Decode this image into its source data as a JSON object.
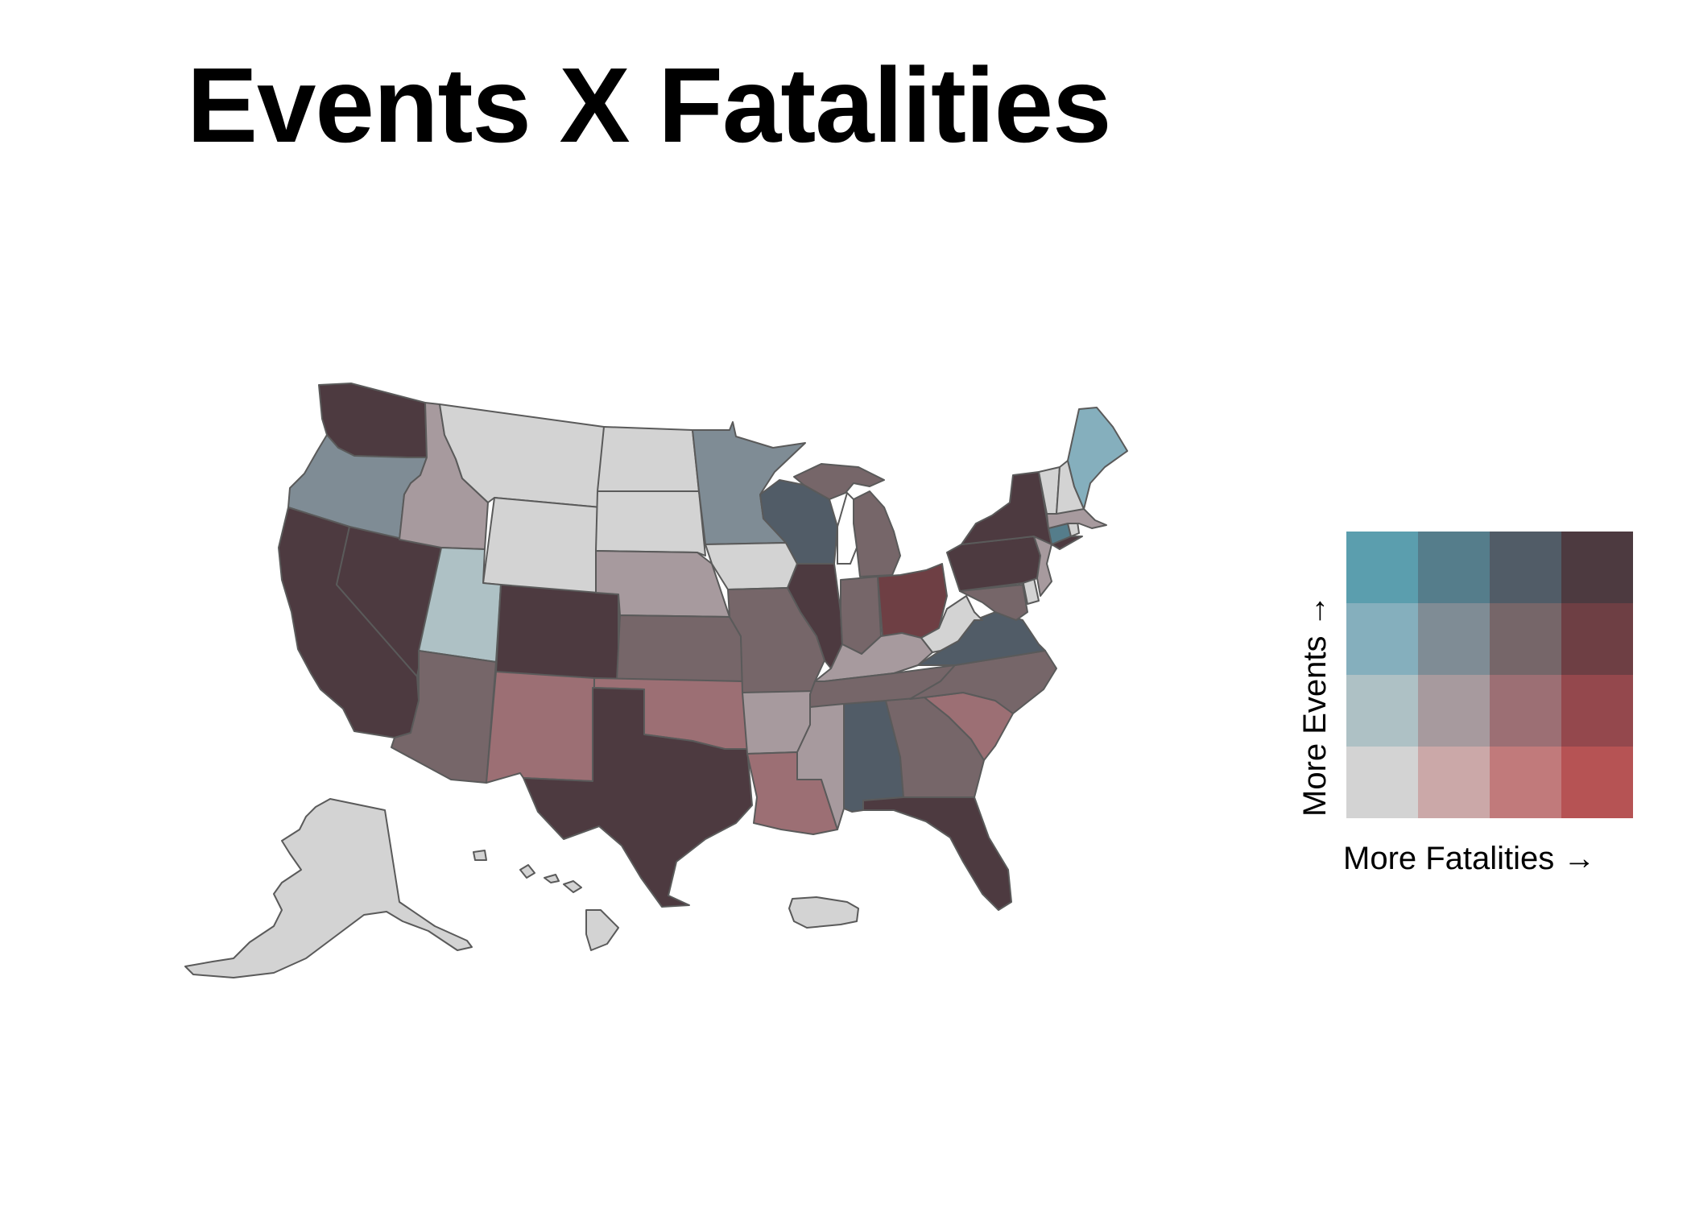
{
  "title": "Events X Fatalities",
  "legend": {
    "x_label": "More Fatalities →",
    "y_label": "More Events →",
    "levels": 4,
    "colors_by_events_row_low_to_high": [
      [
        "#d3d3d3",
        "#cba8a8",
        "#c17a7b",
        "#b65354"
      ],
      [
        "#aec1c5",
        "#a79a9e",
        "#9c6f74",
        "#94484d"
      ],
      [
        "#85afbd",
        "#7f8c95",
        "#766669",
        "#6e3f44"
      ],
      [
        "#5b9eae",
        "#557d8b",
        "#515c67",
        "#4d3a40"
      ]
    ]
  },
  "map": {
    "stroke_color": "#5a5a5a",
    "states": [
      {
        "id": "WA",
        "events_level": 4,
        "fatalities_level": 4
      },
      {
        "id": "OR",
        "events_level": 3,
        "fatalities_level": 2
      },
      {
        "id": "CA",
        "events_level": 4,
        "fatalities_level": 4
      },
      {
        "id": "NV",
        "events_level": 4,
        "fatalities_level": 4
      },
      {
        "id": "ID",
        "events_level": 2,
        "fatalities_level": 2
      },
      {
        "id": "MT",
        "events_level": 1,
        "fatalities_level": 1
      },
      {
        "id": "WY",
        "events_level": 1,
        "fatalities_level": 1
      },
      {
        "id": "UT",
        "events_level": 2,
        "fatalities_level": 1
      },
      {
        "id": "AZ",
        "events_level": 3,
        "fatalities_level": 3
      },
      {
        "id": "CO",
        "events_level": 4,
        "fatalities_level": 4
      },
      {
        "id": "NM",
        "events_level": 2,
        "fatalities_level": 3
      },
      {
        "id": "ND",
        "events_level": 1,
        "fatalities_level": 1
      },
      {
        "id": "SD",
        "events_level": 1,
        "fatalities_level": 1
      },
      {
        "id": "NE",
        "events_level": 2,
        "fatalities_level": 2
      },
      {
        "id": "KS",
        "events_level": 3,
        "fatalities_level": 3
      },
      {
        "id": "OK",
        "events_level": 2,
        "fatalities_level": 3
      },
      {
        "id": "TX",
        "events_level": 4,
        "fatalities_level": 4
      },
      {
        "id": "MN",
        "events_level": 3,
        "fatalities_level": 2
      },
      {
        "id": "IA",
        "events_level": 1,
        "fatalities_level": 1
      },
      {
        "id": "MO",
        "events_level": 3,
        "fatalities_level": 3
      },
      {
        "id": "AR",
        "events_level": 2,
        "fatalities_level": 2
      },
      {
        "id": "LA",
        "events_level": 2,
        "fatalities_level": 3
      },
      {
        "id": "WI",
        "events_level": 4,
        "fatalities_level": 3
      },
      {
        "id": "IL",
        "events_level": 4,
        "fatalities_level": 4
      },
      {
        "id": "MI",
        "events_level": 3,
        "fatalities_level": 3
      },
      {
        "id": "IN",
        "events_level": 3,
        "fatalities_level": 3
      },
      {
        "id": "OH",
        "events_level": 3,
        "fatalities_level": 4
      },
      {
        "id": "KY",
        "events_level": 2,
        "fatalities_level": 2
      },
      {
        "id": "TN",
        "events_level": 3,
        "fatalities_level": 3
      },
      {
        "id": "MS",
        "events_level": 2,
        "fatalities_level": 2
      },
      {
        "id": "AL",
        "events_level": 4,
        "fatalities_level": 3
      },
      {
        "id": "GA",
        "events_level": 3,
        "fatalities_level": 3
      },
      {
        "id": "FL",
        "events_level": 4,
        "fatalities_level": 4
      },
      {
        "id": "SC",
        "events_level": 2,
        "fatalities_level": 3
      },
      {
        "id": "NC",
        "events_level": 3,
        "fatalities_level": 3
      },
      {
        "id": "VA",
        "events_level": 4,
        "fatalities_level": 3
      },
      {
        "id": "WV",
        "events_level": 1,
        "fatalities_level": 1
      },
      {
        "id": "MD",
        "events_level": 3,
        "fatalities_level": 3
      },
      {
        "id": "DE",
        "events_level": 1,
        "fatalities_level": 1
      },
      {
        "id": "PA",
        "events_level": 4,
        "fatalities_level": 4
      },
      {
        "id": "NJ",
        "events_level": 2,
        "fatalities_level": 2
      },
      {
        "id": "NY",
        "events_level": 4,
        "fatalities_level": 4
      },
      {
        "id": "CT",
        "events_level": 4,
        "fatalities_level": 2
      },
      {
        "id": "RI",
        "events_level": 1,
        "fatalities_level": 1
      },
      {
        "id": "MA",
        "events_level": 2,
        "fatalities_level": 2
      },
      {
        "id": "VT",
        "events_level": 1,
        "fatalities_level": 1
      },
      {
        "id": "NH",
        "events_level": 1,
        "fatalities_level": 1
      },
      {
        "id": "ME",
        "events_level": 3,
        "fatalities_level": 1
      },
      {
        "id": "AK",
        "events_level": 1,
        "fatalities_level": 1
      },
      {
        "id": "HI",
        "events_level": 1,
        "fatalities_level": 1
      },
      {
        "id": "PR",
        "events_level": 1,
        "fatalities_level": 1
      }
    ]
  }
}
